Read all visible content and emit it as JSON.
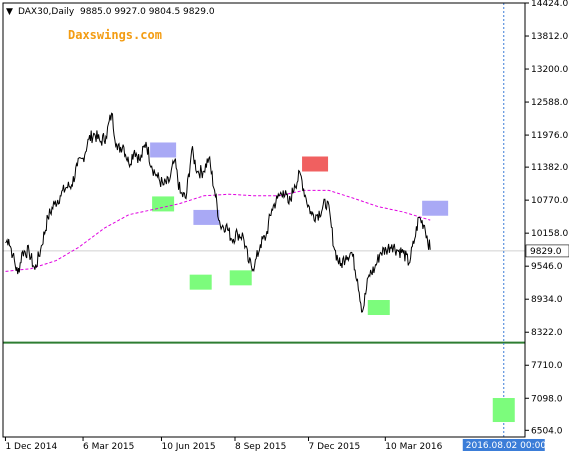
{
  "chart_info": {
    "symbol": "DAX30,Daily",
    "ohlc": "9885.0 9927.0 9804.5 9829.0",
    "watermark": "Daxswings.com",
    "current_price": "9829.0",
    "cursor_time_label": "2016.08.02 00:00"
  },
  "colors": {
    "background": "#ffffff",
    "price_line": "#000000",
    "moving_average": "#e000e0",
    "support_line": "#2e7d32",
    "green_box": "#7CFC7C",
    "blue_box": "#a9a9f5",
    "red_box": "#f06060",
    "cursor_line": "#3b7dd8",
    "cursor_tag_bg": "#3b7dd8"
  },
  "chart_data": {
    "type": "line",
    "title": "DAX30,Daily",
    "y_axis_ticks": [
      "14424.0",
      "13812.0",
      "13200.0",
      "12588.0",
      "11976.0",
      "11382.0",
      "10770.0",
      "10158.0",
      "9546.0",
      "8934.0",
      "8322.0",
      "7710.0",
      "7098.0",
      "6504.0"
    ],
    "ylim": [
      6380,
      14424
    ],
    "x_axis_ticks": [
      {
        "label": "1 Dec 2014",
        "date": "2014-12-01"
      },
      {
        "label": "6 Mar 2015",
        "date": "2015-03-06"
      },
      {
        "label": "10 Jun 2015",
        "date": "2015-06-10"
      },
      {
        "label": "8 Sep 2015",
        "date": "2015-09-08"
      },
      {
        "label": "7 Dec 2015",
        "date": "2015-12-07"
      },
      {
        "label": "10 Mar 2016",
        "date": "2016-03-10"
      }
    ],
    "series": [
      {
        "points": [
          [
            "2014-12-01",
            9980
          ],
          [
            "2014-12-05",
            10050
          ],
          [
            "2014-12-10",
            9750
          ],
          [
            "2014-12-16",
            9400
          ],
          [
            "2014-12-22",
            9820
          ],
          [
            "2014-12-30",
            9810
          ],
          [
            "2015-01-06",
            9480
          ],
          [
            "2015-01-13",
            9850
          ],
          [
            "2015-01-22",
            10450
          ],
          [
            "2015-01-30",
            10700
          ],
          [
            "2015-02-06",
            10850
          ],
          [
            "2015-02-13",
            11000
          ],
          [
            "2015-02-20",
            11050
          ],
          [
            "2015-02-27",
            11400
          ],
          [
            "2015-03-06",
            11550
          ],
          [
            "2015-03-13",
            11900
          ],
          [
            "2015-03-20",
            12000
          ],
          [
            "2015-03-27",
            11850
          ],
          [
            "2015-04-03",
            11950
          ],
          [
            "2015-04-10",
            12380
          ],
          [
            "2015-04-17",
            11700
          ],
          [
            "2015-04-24",
            11800
          ],
          [
            "2015-05-01",
            11450
          ],
          [
            "2015-05-08",
            11700
          ],
          [
            "2015-05-15",
            11500
          ],
          [
            "2015-05-22",
            11850
          ],
          [
            "2015-05-29",
            11400
          ],
          [
            "2015-06-05",
            11200
          ],
          [
            "2015-06-12",
            11050
          ],
          [
            "2015-06-19",
            11100
          ],
          [
            "2015-06-26",
            11500
          ],
          [
            "2015-07-03",
            10900
          ],
          [
            "2015-07-10",
            10800
          ],
          [
            "2015-07-17",
            11700
          ],
          [
            "2015-07-24",
            11300
          ],
          [
            "2015-07-31",
            11300
          ],
          [
            "2015-08-07",
            11550
          ],
          [
            "2015-08-14",
            10950
          ],
          [
            "2015-08-21",
            10300
          ],
          [
            "2015-08-28",
            10300
          ],
          [
            "2015-09-04",
            10050
          ],
          [
            "2015-09-11",
            10150
          ],
          [
            "2015-09-18",
            10100
          ],
          [
            "2015-09-25",
            9600
          ],
          [
            "2015-10-02",
            9550
          ],
          [
            "2015-10-09",
            9950
          ],
          [
            "2015-10-16",
            10100
          ],
          [
            "2015-10-23",
            10600
          ],
          [
            "2015-10-30",
            10800
          ],
          [
            "2015-11-06",
            10950
          ],
          [
            "2015-11-13",
            10700
          ],
          [
            "2015-11-20",
            11050
          ],
          [
            "2015-11-27",
            11250
          ],
          [
            "2015-12-04",
            10800
          ],
          [
            "2015-12-11",
            10500
          ],
          [
            "2015-12-18",
            10500
          ],
          [
            "2015-12-30",
            10750
          ],
          [
            "2016-01-08",
            9850
          ],
          [
            "2016-01-15",
            9550
          ],
          [
            "2016-01-22",
            9750
          ],
          [
            "2016-01-29",
            9800
          ],
          [
            "2016-02-05",
            9300
          ],
          [
            "2016-02-11",
            8700
          ],
          [
            "2016-02-19",
            9380
          ],
          [
            "2016-02-26",
            9500
          ],
          [
            "2016-03-04",
            9800
          ],
          [
            "2016-03-11",
            9850
          ],
          [
            "2016-03-18",
            9950
          ],
          [
            "2016-03-24",
            9850
          ],
          [
            "2016-04-01",
            9800
          ],
          [
            "2016-04-08",
            9600
          ],
          [
            "2016-04-15",
            10050
          ],
          [
            "2016-04-20",
            10450
          ],
          [
            "2016-04-27",
            10300
          ],
          [
            "2016-05-04",
            9850
          ]
        ]
      },
      {
        "points": [
          [
            "2014-12-01",
            9450
          ],
          [
            "2015-01-01",
            9500
          ],
          [
            "2015-02-01",
            9650
          ],
          [
            "2015-03-01",
            9900
          ],
          [
            "2015-04-01",
            10250
          ],
          [
            "2015-05-01",
            10500
          ],
          [
            "2015-06-01",
            10600
          ],
          [
            "2015-07-01",
            10700
          ],
          [
            "2015-08-01",
            10850
          ],
          [
            "2015-09-01",
            10880
          ],
          [
            "2015-10-01",
            10850
          ],
          [
            "2015-11-01",
            10850
          ],
          [
            "2015-12-01",
            10950
          ],
          [
            "2016-01-01",
            10950
          ],
          [
            "2016-02-01",
            10800
          ],
          [
            "2016-03-01",
            10650
          ],
          [
            "2016-04-01",
            10550
          ],
          [
            "2016-05-04",
            10400
          ]
        ]
      }
    ],
    "horizontal_lines": [
      {
        "value": 8130
      }
    ],
    "boxes": [
      {
        "date": "2015-06-12",
        "value": 11700,
        "kind": "blue"
      },
      {
        "date": "2015-06-12",
        "value": 10700,
        "kind": "green"
      },
      {
        "date": "2015-08-04",
        "value": 10450,
        "kind": "blue"
      },
      {
        "date": "2015-07-28",
        "value": 9250,
        "kind": "green"
      },
      {
        "date": "2015-09-15",
        "value": 9330,
        "kind": "green"
      },
      {
        "date": "2015-12-15",
        "value": 11440,
        "kind": "red"
      },
      {
        "date": "2016-03-02",
        "value": 8780,
        "kind": "green"
      },
      {
        "date": "2016-05-10",
        "value": 10620,
        "kind": "blue"
      },
      {
        "date": "2016-08-02",
        "value": 6880,
        "kind": "green"
      }
    ],
    "cursor_date": "2016-08-02",
    "grid": false
  }
}
